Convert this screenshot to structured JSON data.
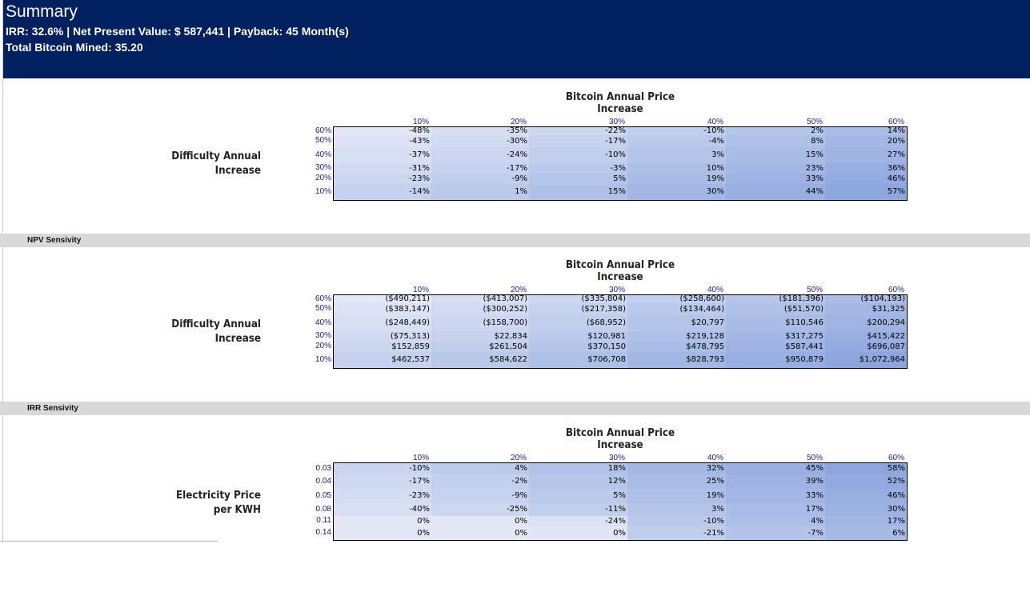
{
  "banner": {
    "title": "Summary",
    "line1": "IRR: 32.6% | Net Present Value: $ 587,441 | Payback: 45 Month(s)",
    "line2": "Total Bitcoin Mined: 35.20"
  },
  "bars": {
    "npv": "NPV Sensivity",
    "irr": "IRR Sensivity"
  },
  "tables": [
    {
      "title": "Bitcoin Annual Price Increase",
      "row_label_1": "Difficulty Annual",
      "row_label_2": "Increase",
      "cols": [
        "10%",
        "20%",
        "30%",
        "40%",
        "50%",
        "60%"
      ],
      "rows": [
        "60%",
        "50%",
        "40%",
        "30%",
        "20%",
        "10%"
      ],
      "cells": [
        [
          "-48%",
          "-35%",
          "-22%",
          "-10%",
          "2%",
          "14%"
        ],
        [
          "-43%",
          "-30%",
          "-17%",
          "-4%",
          "8%",
          "20%"
        ],
        [
          "-37%",
          "-24%",
          "-10%",
          "3%",
          "15%",
          "27%"
        ],
        [
          "-31%",
          "-17%",
          "-3%",
          "10%",
          "23%",
          "36%"
        ],
        [
          "-23%",
          "-9%",
          "5%",
          "19%",
          "33%",
          "46%"
        ],
        [
          "-14%",
          "1%",
          "15%",
          "30%",
          "44%",
          "57%"
        ]
      ]
    },
    {
      "title": "Bitcoin Annual Price Increase",
      "row_label_1": "Difficulty Annual",
      "row_label_2": "Increase",
      "cols": [
        "10%",
        "20%",
        "30%",
        "40%",
        "50%",
        "60%"
      ],
      "rows": [
        "60%",
        "50%",
        "40%",
        "30%",
        "20%",
        "10%"
      ],
      "cells": [
        [
          "($490,211)",
          "($413,007)",
          "($335,804)",
          "($258,600)",
          "($181,396)",
          "($104,193)"
        ],
        [
          "($383,147)",
          "($300,252)",
          "($217,358)",
          "($134,464)",
          "($51,570)",
          "$31,325"
        ],
        [
          "($248,449)",
          "($158,700)",
          "($68,952)",
          "$20,797",
          "$110,546",
          "$200,294"
        ],
        [
          "($75,313)",
          "$22,834",
          "$120,981",
          "$219,128",
          "$317,275",
          "$415,422"
        ],
        [
          "$152,859",
          "$261,504",
          "$370,150",
          "$478,795",
          "$587,441",
          "$696,087"
        ],
        [
          "$462,537",
          "$584,622",
          "$706,708",
          "$828,793",
          "$950,879",
          "$1,072,964"
        ]
      ]
    },
    {
      "title": "Bitcoin Annual Price Increase",
      "row_label_1": "Electricity Price",
      "row_label_2": "per KWH",
      "cols": [
        "10%",
        "20%",
        "30%",
        "40%",
        "50%",
        "60%"
      ],
      "rows": [
        "0.03",
        "0.04",
        "0.05",
        "0.08",
        "0.11",
        "0.14"
      ],
      "cells": [
        [
          "-10%",
          "4%",
          "18%",
          "32%",
          "45%",
          "58%"
        ],
        [
          "-17%",
          "-2%",
          "12%",
          "25%",
          "39%",
          "52%"
        ],
        [
          "-23%",
          "-9%",
          "5%",
          "19%",
          "33%",
          "46%"
        ],
        [
          "-40%",
          "-25%",
          "-11%",
          "3%",
          "17%",
          "30%"
        ],
        [
          "0%",
          "0%",
          "-24%",
          "-10%",
          "4%",
          "17%"
        ],
        [
          "0%",
          "0%",
          "0%",
          "-21%",
          "-7%",
          "6%"
        ]
      ]
    }
  ]
}
